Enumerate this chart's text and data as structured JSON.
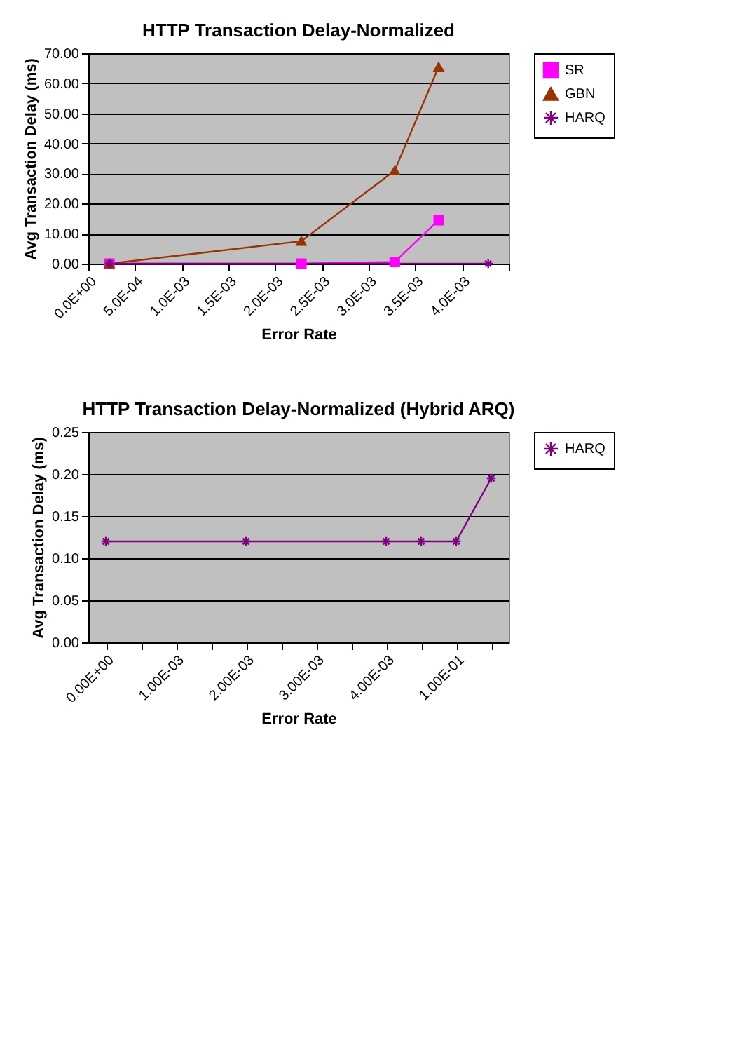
{
  "chart_data": [
    {
      "type": "line",
      "title": "HTTP Transaction Delay-Normalized",
      "xlabel": "Error Rate",
      "ylabel": "Avg Transaction Delay (ms)",
      "series": [
        {
          "name": "SR",
          "color": "#ff00ff",
          "marker": "square",
          "x": [
            0.000225,
            0.00228,
            0.00328,
            0.00375
          ],
          "values": [
            0,
            0,
            0.6,
            14.5
          ]
        },
        {
          "name": "GBN",
          "color": "#993300",
          "marker": "triangle",
          "x": [
            0.000225,
            0.00228,
            0.00328,
            0.00375
          ],
          "values": [
            0,
            7.5,
            31,
            65.5
          ]
        },
        {
          "name": "HARQ",
          "color": "#800080",
          "marker": "cross",
          "x": [
            0.000225,
            0.00428
          ],
          "values": [
            0,
            0
          ]
        }
      ],
      "xlim": [
        0,
        0.0045
      ],
      "xticks": [
        {
          "value": 0,
          "label": "0.0E+00"
        },
        {
          "value": 0.0005,
          "label": "5.0E-04"
        },
        {
          "value": 0.001,
          "label": "1.0E-03"
        },
        {
          "value": 0.0015,
          "label": "1.5E-03"
        },
        {
          "value": 0.002,
          "label": "2.0E-03"
        },
        {
          "value": 0.0025,
          "label": "2.5E-03"
        },
        {
          "value": 0.003,
          "label": "3.0E-03"
        },
        {
          "value": 0.0035,
          "label": "3.5E-03"
        },
        {
          "value": 0.004,
          "label": "4.0E-03"
        },
        {
          "value": 0.0045,
          "label": null
        }
      ],
      "ylim": [
        0,
        70
      ],
      "yticks": [
        {
          "value": 0,
          "label": "0.00"
        },
        {
          "value": 10,
          "label": "10.00"
        },
        {
          "value": 20,
          "label": "20.00"
        },
        {
          "value": 30,
          "label": "30.00"
        },
        {
          "value": 40,
          "label": "40.00"
        },
        {
          "value": 50,
          "label": "50.00"
        },
        {
          "value": 60,
          "label": "60.00"
        },
        {
          "value": 70,
          "label": "70.00"
        }
      ],
      "grid": "y",
      "legend": "right"
    },
    {
      "type": "line",
      "title": "HTTP Transaction Delay-Normalized (Hybrid ARQ)",
      "xlabel": "Error Rate",
      "ylabel": "Avg Transaction Delay (ms)",
      "categories": [
        "0.00E+00",
        null,
        "1.00E-03",
        null,
        "2.00E-03",
        null,
        "3.00E-03",
        null,
        "4.00E-03",
        null,
        "1.00E-01",
        null
      ],
      "series": [
        {
          "name": "HARQ",
          "color": "#800080",
          "marker": "cross",
          "values": [
            0.12,
            null,
            null,
            null,
            0.12,
            null,
            null,
            null,
            0.12,
            0.12,
            0.12,
            0.195
          ]
        }
      ],
      "ylim": [
        0,
        0.25
      ],
      "yticks": [
        {
          "value": 0,
          "label": "0.00"
        },
        {
          "value": 0.05,
          "label": "0.05"
        },
        {
          "value": 0.1,
          "label": "0.10"
        },
        {
          "value": 0.15,
          "label": "0.15"
        },
        {
          "value": 0.2,
          "label": "0.20"
        },
        {
          "value": 0.25,
          "label": "0.25"
        }
      ],
      "grid": "y",
      "legend": "right"
    }
  ]
}
